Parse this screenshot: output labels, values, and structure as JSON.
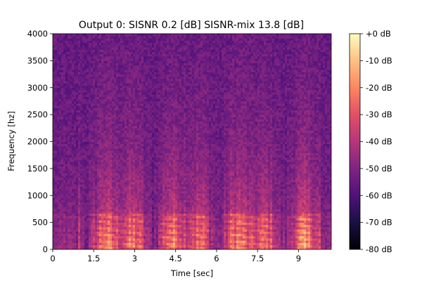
{
  "chart_data": {
    "type": "heatmap",
    "title": "Output 0: SISNR 0.2 [dB] SISNR-mix 13.8 [dB]",
    "xlabel": "Time [sec]",
    "ylabel": "Frequency [hz]",
    "xlim": [
      0,
      10.2
    ],
    "ylim": [
      0,
      4000
    ],
    "x_ticks": [
      0,
      1.5,
      3,
      4.5,
      6,
      7.5,
      9
    ],
    "x_tick_labels": [
      "0",
      "1.5",
      "3",
      "4.5",
      "6",
      "7.5",
      "9"
    ],
    "y_ticks": [
      0,
      500,
      1000,
      1500,
      2000,
      2500,
      3000,
      3500,
      4000
    ],
    "y_tick_labels": [
      "0",
      "500",
      "1000",
      "1500",
      "2000",
      "2500",
      "3000",
      "3500",
      "4000"
    ],
    "colorbar": {
      "range_db": [
        -80,
        0
      ],
      "ticks": [
        0,
        -10,
        -20,
        -30,
        -40,
        -50,
        -60,
        -70,
        -80
      ],
      "tick_labels": [
        "+0 dB",
        "-10 dB",
        "-20 dB",
        "-30 dB",
        "-40 dB",
        "-50 dB",
        "-60 dB",
        "-70 dB",
        "-80 dB"
      ],
      "colormap": "magma"
    },
    "grid": false
  }
}
